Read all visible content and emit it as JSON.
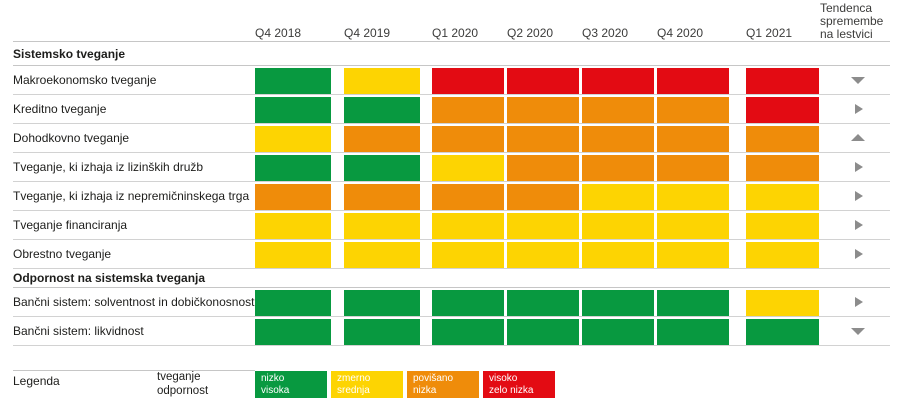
{
  "chart_data": {
    "type": "heatmap",
    "columns": [
      "Q4 2018",
      "Q4 2019",
      "Q1 2020",
      "Q2 2020",
      "Q3 2020",
      "Q4 2020",
      "Q1 2021"
    ],
    "trend_column_header": "Tendenca spremembe na lestvici",
    "level_colors": {
      "nizko": "#089940",
      "zmerno": "#fdd402",
      "povišano": "#ef8c0a",
      "visoko": "#e30b13"
    },
    "arrow_color": "#8c8c8c",
    "sections": [
      {
        "title": "Sistemsko tveganje",
        "rows": [
          {
            "label": "Makroekonomsko tveganje",
            "levels": [
              "nizko",
              "zmerno",
              "visoko",
              "visoko",
              "visoko",
              "visoko",
              "visoko"
            ],
            "trend": "down"
          },
          {
            "label": "Kreditno tveganje",
            "levels": [
              "nizko",
              "nizko",
              "povišano",
              "povišano",
              "povišano",
              "povišano",
              "visoko"
            ],
            "trend": "right"
          },
          {
            "label": "Dohodkovno tveganje",
            "levels": [
              "zmerno",
              "povišano",
              "povišano",
              "povišano",
              "povišano",
              "povišano",
              "povišano"
            ],
            "trend": "up"
          },
          {
            "label": "Tveganje, ki izhaja iz lizinških družb",
            "levels": [
              "nizko",
              "nizko",
              "zmerno",
              "povišano",
              "povišano",
              "povišano",
              "povišano"
            ],
            "trend": "right"
          },
          {
            "label": "Tveganje, ki izhaja iz nepremičninskega trga",
            "levels": [
              "povišano",
              "povišano",
              "povišano",
              "povišano",
              "zmerno",
              "zmerno",
              "zmerno"
            ],
            "trend": "right"
          },
          {
            "label": "Tveganje financiranja",
            "levels": [
              "zmerno",
              "zmerno",
              "zmerno",
              "zmerno",
              "zmerno",
              "zmerno",
              "zmerno"
            ],
            "trend": "right"
          },
          {
            "label": "Obrestno tveganje",
            "levels": [
              "zmerno",
              "zmerno",
              "zmerno",
              "zmerno",
              "zmerno",
              "zmerno",
              "zmerno"
            ],
            "trend": "right"
          }
        ]
      },
      {
        "title": "Odpornost na sistemska tveganja",
        "rows": [
          {
            "label": "Bančni sistem: solventnost in dobičkonosnost",
            "levels": [
              "nizko",
              "nizko",
              "nizko",
              "nizko",
              "nizko",
              "nizko",
              "zmerno"
            ],
            "trend": "right"
          },
          {
            "label": "Bančni sistem: likvidnost",
            "levels": [
              "nizko",
              "nizko",
              "nizko",
              "nizko",
              "nizko",
              "nizko",
              "nizko"
            ],
            "trend": "down"
          }
        ]
      }
    ]
  },
  "legend": {
    "label": "Legenda",
    "axis_labels": [
      "tveganje",
      "odpornost"
    ],
    "items": [
      {
        "level": "nizko",
        "risk": "nizko",
        "resilience": "visoka"
      },
      {
        "level": "zmerno",
        "risk": "zmerno",
        "resilience": "srednja"
      },
      {
        "level": "povišano",
        "risk": "povišano",
        "resilience": "nizka"
      },
      {
        "level": "visoko",
        "risk": "visoko",
        "resilience": "zelo nizka"
      }
    ]
  }
}
